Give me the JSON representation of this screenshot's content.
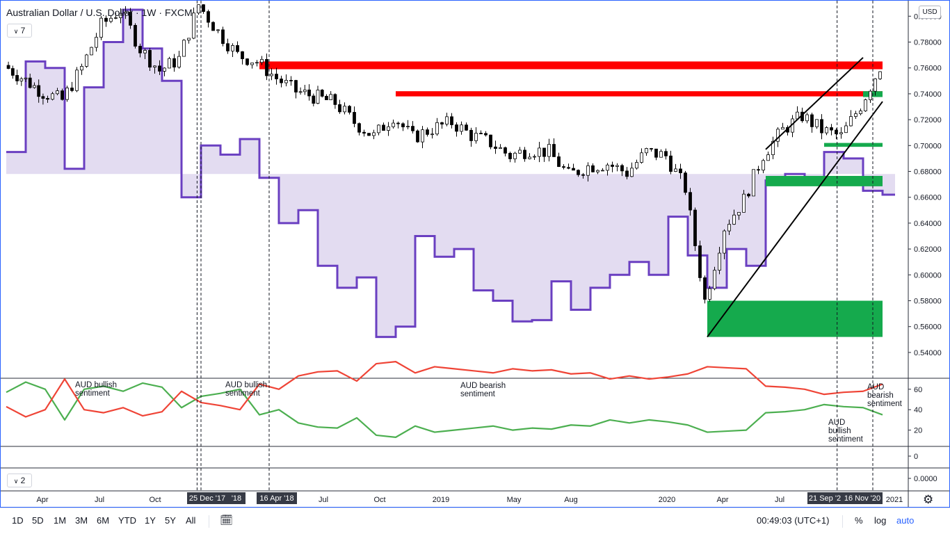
{
  "header": {
    "title": "Australian Dollar / U.S. Dollar · 1W · FXCM",
    "pane1_badge": "7",
    "pane2_badge": "2",
    "currency": "USD"
  },
  "colors": {
    "candle_up": "#ffffff",
    "candle_down": "#000000",
    "positioning_line": "#6a3fc1",
    "positioning_fill": "#d7cdeb",
    "resistance": "#ff0000",
    "support": "#15aa4d",
    "long_line": "#4caf50",
    "short_line": "#ef4436"
  },
  "price_axis": {
    "ticks": [
      "0",
      "0.80000",
      "0.78000",
      "0.76000",
      "0.74000",
      "0.72000",
      "0.70000",
      "0.68000",
      "0.66000",
      "0.64000",
      "0.62000",
      "0.60000",
      "0.58000",
      "0.56000",
      "0.54000"
    ]
  },
  "sentiment_axis": {
    "ticks": [
      "60",
      "40",
      "20",
      "0",
      "0.0000"
    ]
  },
  "time_axis": {
    "labels": [
      "Apr",
      "Jul",
      "Oct",
      "Jul",
      "Oct",
      "2019",
      "May",
      "Aug",
      "2020",
      "Apr",
      "Jul",
      "2021"
    ],
    "highlighted": [
      "25 Dec '17",
      "'18",
      "16 Apr '18",
      "21 Sep '2",
      "16 Nov '20"
    ]
  },
  "annotations": [
    {
      "lines": [
        "AUD bullish",
        "sentiment"
      ]
    },
    {
      "lines": [
        "AUD bullish",
        "sentiment"
      ]
    },
    {
      "lines": [
        "AUD bearish",
        "sentiment"
      ]
    },
    {
      "lines": [
        "AUD",
        "bullish",
        "sentiment"
      ]
    },
    {
      "lines": [
        "AUD",
        "bearish",
        "sentiment"
      ]
    }
  ],
  "bottom_bar": {
    "timeframes": [
      "1D",
      "5D",
      "1M",
      "3M",
      "6M",
      "YTD",
      "1Y",
      "5Y",
      "All"
    ],
    "clock": "00:49:03 (UTC+1)",
    "percent": "%",
    "log": "log",
    "auto": "auto"
  },
  "chart_data": {
    "type": "candlestick",
    "title": "Australian Dollar / U.S. Dollar · 1W · FXCM",
    "timeframe": "1W",
    "y_range": [
      0.54,
      0.815
    ],
    "close_path": [
      {
        "t": "2017-03",
        "v": 0.762
      },
      {
        "t": "2017-05",
        "v": 0.741
      },
      {
        "t": "2017-06",
        "v": 0.735
      },
      {
        "t": "2017-07",
        "v": 0.76
      },
      {
        "t": "2017-08",
        "v": 0.793
      },
      {
        "t": "2017-09",
        "v": 0.805
      },
      {
        "t": "2017-10",
        "v": 0.775
      },
      {
        "t": "2017-11",
        "v": 0.758
      },
      {
        "t": "2017-12",
        "v": 0.767
      },
      {
        "t": "2018-01",
        "v": 0.809
      },
      {
        "t": "2018-02",
        "v": 0.788
      },
      {
        "t": "2018-03",
        "v": 0.77
      },
      {
        "t": "2018-04",
        "v": 0.765
      },
      {
        "t": "2018-05",
        "v": 0.752
      },
      {
        "t": "2018-06",
        "v": 0.742
      },
      {
        "t": "2018-08",
        "v": 0.733
      },
      {
        "t": "2018-09",
        "v": 0.718
      },
      {
        "t": "2018-10",
        "v": 0.707
      },
      {
        "t": "2018-11",
        "v": 0.723
      },
      {
        "t": "2018-12",
        "v": 0.706
      },
      {
        "t": "2019-01",
        "v": 0.713
      },
      {
        "t": "2019-02",
        "v": 0.718
      },
      {
        "t": "2019-03",
        "v": 0.708
      },
      {
        "t": "2019-04",
        "v": 0.702
      },
      {
        "t": "2019-05",
        "v": 0.692
      },
      {
        "t": "2019-06",
        "v": 0.697
      },
      {
        "t": "2019-07",
        "v": 0.695
      },
      {
        "t": "2019-08",
        "v": 0.677
      },
      {
        "t": "2019-09",
        "v": 0.684
      },
      {
        "t": "2019-10",
        "v": 0.686
      },
      {
        "t": "2019-11",
        "v": 0.679
      },
      {
        "t": "2019-12",
        "v": 0.695
      },
      {
        "t": "2020-01",
        "v": 0.692
      },
      {
        "t": "2020-02",
        "v": 0.667
      },
      {
        "t": "2020-03",
        "v": 0.58
      },
      {
        "t": "2020-04",
        "v": 0.637
      },
      {
        "t": "2020-05",
        "v": 0.658
      },
      {
        "t": "2020-06",
        "v": 0.693
      },
      {
        "t": "2020-07",
        "v": 0.712
      },
      {
        "t": "2020-08",
        "v": 0.723
      },
      {
        "t": "2020-09",
        "v": 0.712
      },
      {
        "t": "2020-10",
        "v": 0.707
      },
      {
        "t": "2020-11",
        "v": 0.731
      },
      {
        "t": "2020-12",
        "v": 0.761
      }
    ],
    "resistance_zones": [
      {
        "start": "2018-04",
        "end": "2020-12",
        "low": 0.759,
        "high": 0.765
      },
      {
        "start": "2018-11",
        "end": "2020-12",
        "low": 0.738,
        "high": 0.742
      }
    ],
    "support_zones": [
      {
        "start": "2020-11",
        "end": "2020-12",
        "low": 0.7375,
        "high": 0.742
      },
      {
        "start": "2020-09",
        "end": "2020-12",
        "low": 0.699,
        "high": 0.702
      },
      {
        "start": "2020-06",
        "end": "2020-12",
        "low": 0.6685,
        "high": 0.6765
      },
      {
        "start": "2020-03",
        "end": "2020-12",
        "low": 0.552,
        "high": 0.58
      }
    ],
    "trendlines": [
      {
        "from": {
          "t": "2020-03",
          "v": 0.552
        },
        "to": {
          "t": "2020-12",
          "v": 0.734
        }
      },
      {
        "from": {
          "t": "2020-06",
          "v": 0.697
        },
        "to": {
          "t": "2020-11",
          "v": 0.768
        }
      }
    ],
    "markers": [
      "2017-12-25",
      "2018-01",
      "2018-04-16",
      "2020-09-21",
      "2020-11-16"
    ],
    "positioning_indicator": {
      "path": [
        {
          "t": "2017-03",
          "v": 0.695
        },
        {
          "t": "2017-04",
          "v": 0.765
        },
        {
          "t": "2017-05",
          "v": 0.76
        },
        {
          "t": "2017-06",
          "v": 0.682
        },
        {
          "t": "2017-07",
          "v": 0.745
        },
        {
          "t": "2017-08",
          "v": 0.78
        },
        {
          "t": "2017-09",
          "v": 0.805
        },
        {
          "t": "2017-10",
          "v": 0.775
        },
        {
          "t": "2017-11",
          "v": 0.75
        },
        {
          "t": "2017-12",
          "v": 0.66
        },
        {
          "t": "2018-01",
          "v": 0.7
        },
        {
          "t": "2018-02",
          "v": 0.693
        },
        {
          "t": "2018-03",
          "v": 0.705
        },
        {
          "t": "2018-04",
          "v": 0.675
        },
        {
          "t": "2018-05",
          "v": 0.64
        },
        {
          "t": "2018-06",
          "v": 0.65
        },
        {
          "t": "2018-07",
          "v": 0.607
        },
        {
          "t": "2018-08",
          "v": 0.59
        },
        {
          "t": "2018-09",
          "v": 0.598
        },
        {
          "t": "2018-10",
          "v": 0.552
        },
        {
          "t": "2018-11",
          "v": 0.56
        },
        {
          "t": "2018-12",
          "v": 0.63
        },
        {
          "t": "2019-01",
          "v": 0.614
        },
        {
          "t": "2019-02",
          "v": 0.62
        },
        {
          "t": "2019-03",
          "v": 0.588
        },
        {
          "t": "2019-04",
          "v": 0.58
        },
        {
          "t": "2019-05",
          "v": 0.564
        },
        {
          "t": "2019-06",
          "v": 0.565
        },
        {
          "t": "2019-07",
          "v": 0.595
        },
        {
          "t": "2019-08",
          "v": 0.573
        },
        {
          "t": "2019-09",
          "v": 0.59
        },
        {
          "t": "2019-10",
          "v": 0.6
        },
        {
          "t": "2019-11",
          "v": 0.61
        },
        {
          "t": "2019-12",
          "v": 0.6
        },
        {
          "t": "2020-01",
          "v": 0.645
        },
        {
          "t": "2020-02",
          "v": 0.615
        },
        {
          "t": "2020-03",
          "v": 0.59
        },
        {
          "t": "2020-04",
          "v": 0.62
        },
        {
          "t": "2020-05",
          "v": 0.607
        },
        {
          "t": "2020-06",
          "v": 0.673
        },
        {
          "t": "2020-07",
          "v": 0.678
        },
        {
          "t": "2020-08",
          "v": 0.674
        },
        {
          "t": "2020-09",
          "v": 0.695
        },
        {
          "t": "2020-10",
          "v": 0.69
        },
        {
          "t": "2020-11",
          "v": 0.665
        },
        {
          "t": "2020-12",
          "v": 0.662
        }
      ],
      "baseline": 0.678
    },
    "sentiment_pane": {
      "y_range": [
        0,
        70
      ],
      "series": [
        {
          "color": "#4caf50",
          "points": [
            {
              "t": "2017-03",
              "v": 57
            },
            {
              "t": "2017-04",
              "v": 67
            },
            {
              "t": "2017-05",
              "v": 60
            },
            {
              "t": "2017-06",
              "v": 30
            },
            {
              "t": "2017-07",
              "v": 60
            },
            {
              "t": "2017-08",
              "v": 63
            },
            {
              "t": "2017-09",
              "v": 58
            },
            {
              "t": "2017-10",
              "v": 66
            },
            {
              "t": "2017-11",
              "v": 62
            },
            {
              "t": "2017-12",
              "v": 42
            },
            {
              "t": "2018-01",
              "v": 53
            },
            {
              "t": "2018-02",
              "v": 56
            },
            {
              "t": "2018-03",
              "v": 60
            },
            {
              "t": "2018-04",
              "v": 35
            },
            {
              "t": "2018-05",
              "v": 40
            },
            {
              "t": "2018-06",
              "v": 27
            },
            {
              "t": "2018-07",
              "v": 23
            },
            {
              "t": "2018-08",
              "v": 22
            },
            {
              "t": "2018-09",
              "v": 32
            },
            {
              "t": "2018-10",
              "v": 15
            },
            {
              "t": "2018-11",
              "v": 13
            },
            {
              "t": "2018-12",
              "v": 24
            },
            {
              "t": "2019-01",
              "v": 18
            },
            {
              "t": "2019-02",
              "v": 20
            },
            {
              "t": "2019-03",
              "v": 22
            },
            {
              "t": "2019-04",
              "v": 24
            },
            {
              "t": "2019-05",
              "v": 20
            },
            {
              "t": "2019-06",
              "v": 22
            },
            {
              "t": "2019-07",
              "v": 21
            },
            {
              "t": "2019-08",
              "v": 25
            },
            {
              "t": "2019-09",
              "v": 24
            },
            {
              "t": "2019-10",
              "v": 30
            },
            {
              "t": "2019-11",
              "v": 27
            },
            {
              "t": "2019-12",
              "v": 30
            },
            {
              "t": "2020-01",
              "v": 28
            },
            {
              "t": "2020-02",
              "v": 25
            },
            {
              "t": "2020-03",
              "v": 18
            },
            {
              "t": "2020-04",
              "v": 19
            },
            {
              "t": "2020-05",
              "v": 20
            },
            {
              "t": "2020-06",
              "v": 37
            },
            {
              "t": "2020-07",
              "v": 38
            },
            {
              "t": "2020-08",
              "v": 40
            },
            {
              "t": "2020-09",
              "v": 45
            },
            {
              "t": "2020-10",
              "v": 43
            },
            {
              "t": "2020-11",
              "v": 42
            },
            {
              "t": "2020-12",
              "v": 35
            }
          ]
        },
        {
          "color": "#ef4436",
          "points": [
            {
              "t": "2017-03",
              "v": 43
            },
            {
              "t": "2017-04",
              "v": 33
            },
            {
              "t": "2017-05",
              "v": 40
            },
            {
              "t": "2017-06",
              "v": 70
            },
            {
              "t": "2017-07",
              "v": 40
            },
            {
              "t": "2017-08",
              "v": 37
            },
            {
              "t": "2017-09",
              "v": 42
            },
            {
              "t": "2017-10",
              "v": 34
            },
            {
              "t": "2017-11",
              "v": 38
            },
            {
              "t": "2017-12",
              "v": 58
            },
            {
              "t": "2018-01",
              "v": 47
            },
            {
              "t": "2018-02",
              "v": 44
            },
            {
              "t": "2018-03",
              "v": 40
            },
            {
              "t": "2018-04",
              "v": 65
            },
            {
              "t": "2018-05",
              "v": 60
            },
            {
              "t": "2018-06",
              "v": 73
            },
            {
              "t": "2018-07",
              "v": 77
            },
            {
              "t": "2018-08",
              "v": 78
            },
            {
              "t": "2018-09",
              "v": 68
            },
            {
              "t": "2018-10",
              "v": 85
            },
            {
              "t": "2018-11",
              "v": 87
            },
            {
              "t": "2018-12",
              "v": 76
            },
            {
              "t": "2019-01",
              "v": 82
            },
            {
              "t": "2019-02",
              "v": 80
            },
            {
              "t": "2019-03",
              "v": 78
            },
            {
              "t": "2019-04",
              "v": 76
            },
            {
              "t": "2019-05",
              "v": 80
            },
            {
              "t": "2019-06",
              "v": 78
            },
            {
              "t": "2019-07",
              "v": 79
            },
            {
              "t": "2019-08",
              "v": 75
            },
            {
              "t": "2019-09",
              "v": 76
            },
            {
              "t": "2019-10",
              "v": 70
            },
            {
              "t": "2019-11",
              "v": 73
            },
            {
              "t": "2019-12",
              "v": 70
            },
            {
              "t": "2020-01",
              "v": 72
            },
            {
              "t": "2020-02",
              "v": 75
            },
            {
              "t": "2020-03",
              "v": 82
            },
            {
              "t": "2020-04",
              "v": 81
            },
            {
              "t": "2020-05",
              "v": 80
            },
            {
              "t": "2020-06",
              "v": 63
            },
            {
              "t": "2020-07",
              "v": 62
            },
            {
              "t": "2020-08",
              "v": 60
            },
            {
              "t": "2020-09",
              "v": 55
            },
            {
              "t": "2020-10",
              "v": 57
            },
            {
              "t": "2020-11",
              "v": 58
            },
            {
              "t": "2020-12",
              "v": 65
            }
          ]
        }
      ]
    }
  }
}
